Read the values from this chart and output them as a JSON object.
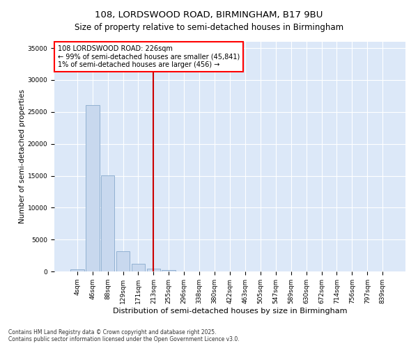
{
  "title": "108, LORDSWOOD ROAD, BIRMINGHAM, B17 9BU",
  "subtitle": "Size of property relative to semi-detached houses in Birmingham",
  "xlabel": "Distribution of semi-detached houses by size in Birmingham",
  "ylabel": "Number of semi-detached properties",
  "categories": [
    "4sqm",
    "46sqm",
    "88sqm",
    "129sqm",
    "171sqm",
    "213sqm",
    "255sqm",
    "296sqm",
    "338sqm",
    "380sqm",
    "422sqm",
    "463sqm",
    "505sqm",
    "547sqm",
    "589sqm",
    "630sqm",
    "672sqm",
    "714sqm",
    "756sqm",
    "797sqm",
    "839sqm"
  ],
  "bar_values": [
    380,
    26100,
    15100,
    3200,
    1200,
    400,
    250,
    0,
    0,
    0,
    0,
    0,
    0,
    0,
    0,
    0,
    0,
    0,
    0,
    0,
    0
  ],
  "bar_color": "#c8d8ee",
  "bar_edge_color": "#88aacc",
  "annotation_text_line1": "108 LORDSWOOD ROAD: 226sqm",
  "annotation_text_line2": "← 99% of semi-detached houses are smaller (45,841)",
  "annotation_text_line3": "1% of semi-detached houses are larger (456) →",
  "vline_color": "#cc0000",
  "vline_x": 5.0,
  "ylim": [
    0,
    36000
  ],
  "yticks": [
    0,
    5000,
    10000,
    15000,
    20000,
    25000,
    30000,
    35000
  ],
  "bg_color": "#dce8f8",
  "footer_line1": "Contains HM Land Registry data © Crown copyright and database right 2025.",
  "footer_line2": "Contains public sector information licensed under the Open Government Licence v3.0.",
  "title_fontsize": 9.5,
  "subtitle_fontsize": 8.5,
  "ylabel_fontsize": 7.5,
  "xlabel_fontsize": 8,
  "tick_fontsize": 6.5,
  "annotation_fontsize": 7,
  "footer_fontsize": 5.5
}
